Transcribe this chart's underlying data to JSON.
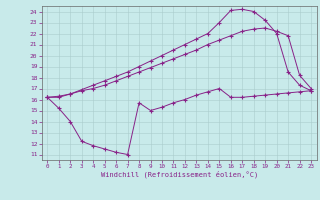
{
  "xlabel": "Windchill (Refroidissement éolien,°C)",
  "bg_color": "#c8eaea",
  "line_color": "#882288",
  "xlim": [
    -0.5,
    23.5
  ],
  "ylim": [
    10.5,
    24.5
  ],
  "xticks": [
    0,
    1,
    2,
    3,
    4,
    5,
    6,
    7,
    8,
    9,
    10,
    11,
    12,
    13,
    14,
    15,
    16,
    17,
    18,
    19,
    20,
    21,
    22,
    23
  ],
  "yticks": [
    11,
    12,
    13,
    14,
    15,
    16,
    17,
    18,
    19,
    20,
    21,
    22,
    23,
    24
  ],
  "series1_x": [
    0,
    1,
    2,
    3,
    4,
    5,
    6,
    7,
    8,
    9,
    10,
    11,
    12,
    13,
    14,
    15,
    16,
    17,
    18,
    19,
    20,
    21,
    22,
    23
  ],
  "series1_y": [
    16.2,
    16.3,
    16.5,
    16.8,
    17.0,
    17.3,
    17.7,
    18.1,
    18.5,
    18.9,
    19.3,
    19.7,
    20.1,
    20.5,
    21.0,
    21.4,
    21.8,
    22.2,
    22.4,
    22.5,
    22.2,
    21.8,
    18.2,
    17.0
  ],
  "series2_x": [
    0,
    1,
    2,
    3,
    4,
    5,
    6,
    7,
    8,
    9,
    10,
    11,
    12,
    13,
    14,
    15,
    16,
    17,
    18,
    19,
    20,
    21,
    22,
    23
  ],
  "series2_y": [
    16.2,
    16.2,
    16.5,
    16.9,
    17.3,
    17.7,
    18.1,
    18.5,
    19.0,
    19.5,
    20.0,
    20.5,
    21.0,
    21.5,
    22.0,
    23.0,
    24.1,
    24.2,
    24.0,
    23.2,
    22.0,
    18.5,
    17.3,
    16.8
  ],
  "series3_x": [
    0,
    1,
    2,
    3,
    4,
    5,
    6,
    7,
    8,
    9,
    10,
    11,
    12,
    13,
    14,
    15,
    16,
    17,
    18,
    19,
    20,
    21,
    22,
    23
  ],
  "series3_y": [
    16.2,
    15.2,
    14.0,
    12.2,
    11.8,
    11.5,
    11.2,
    11.0,
    15.7,
    15.0,
    15.3,
    15.7,
    16.0,
    16.4,
    16.7,
    17.0,
    16.2,
    16.2,
    16.3,
    16.4,
    16.5,
    16.6,
    16.7,
    16.8
  ]
}
